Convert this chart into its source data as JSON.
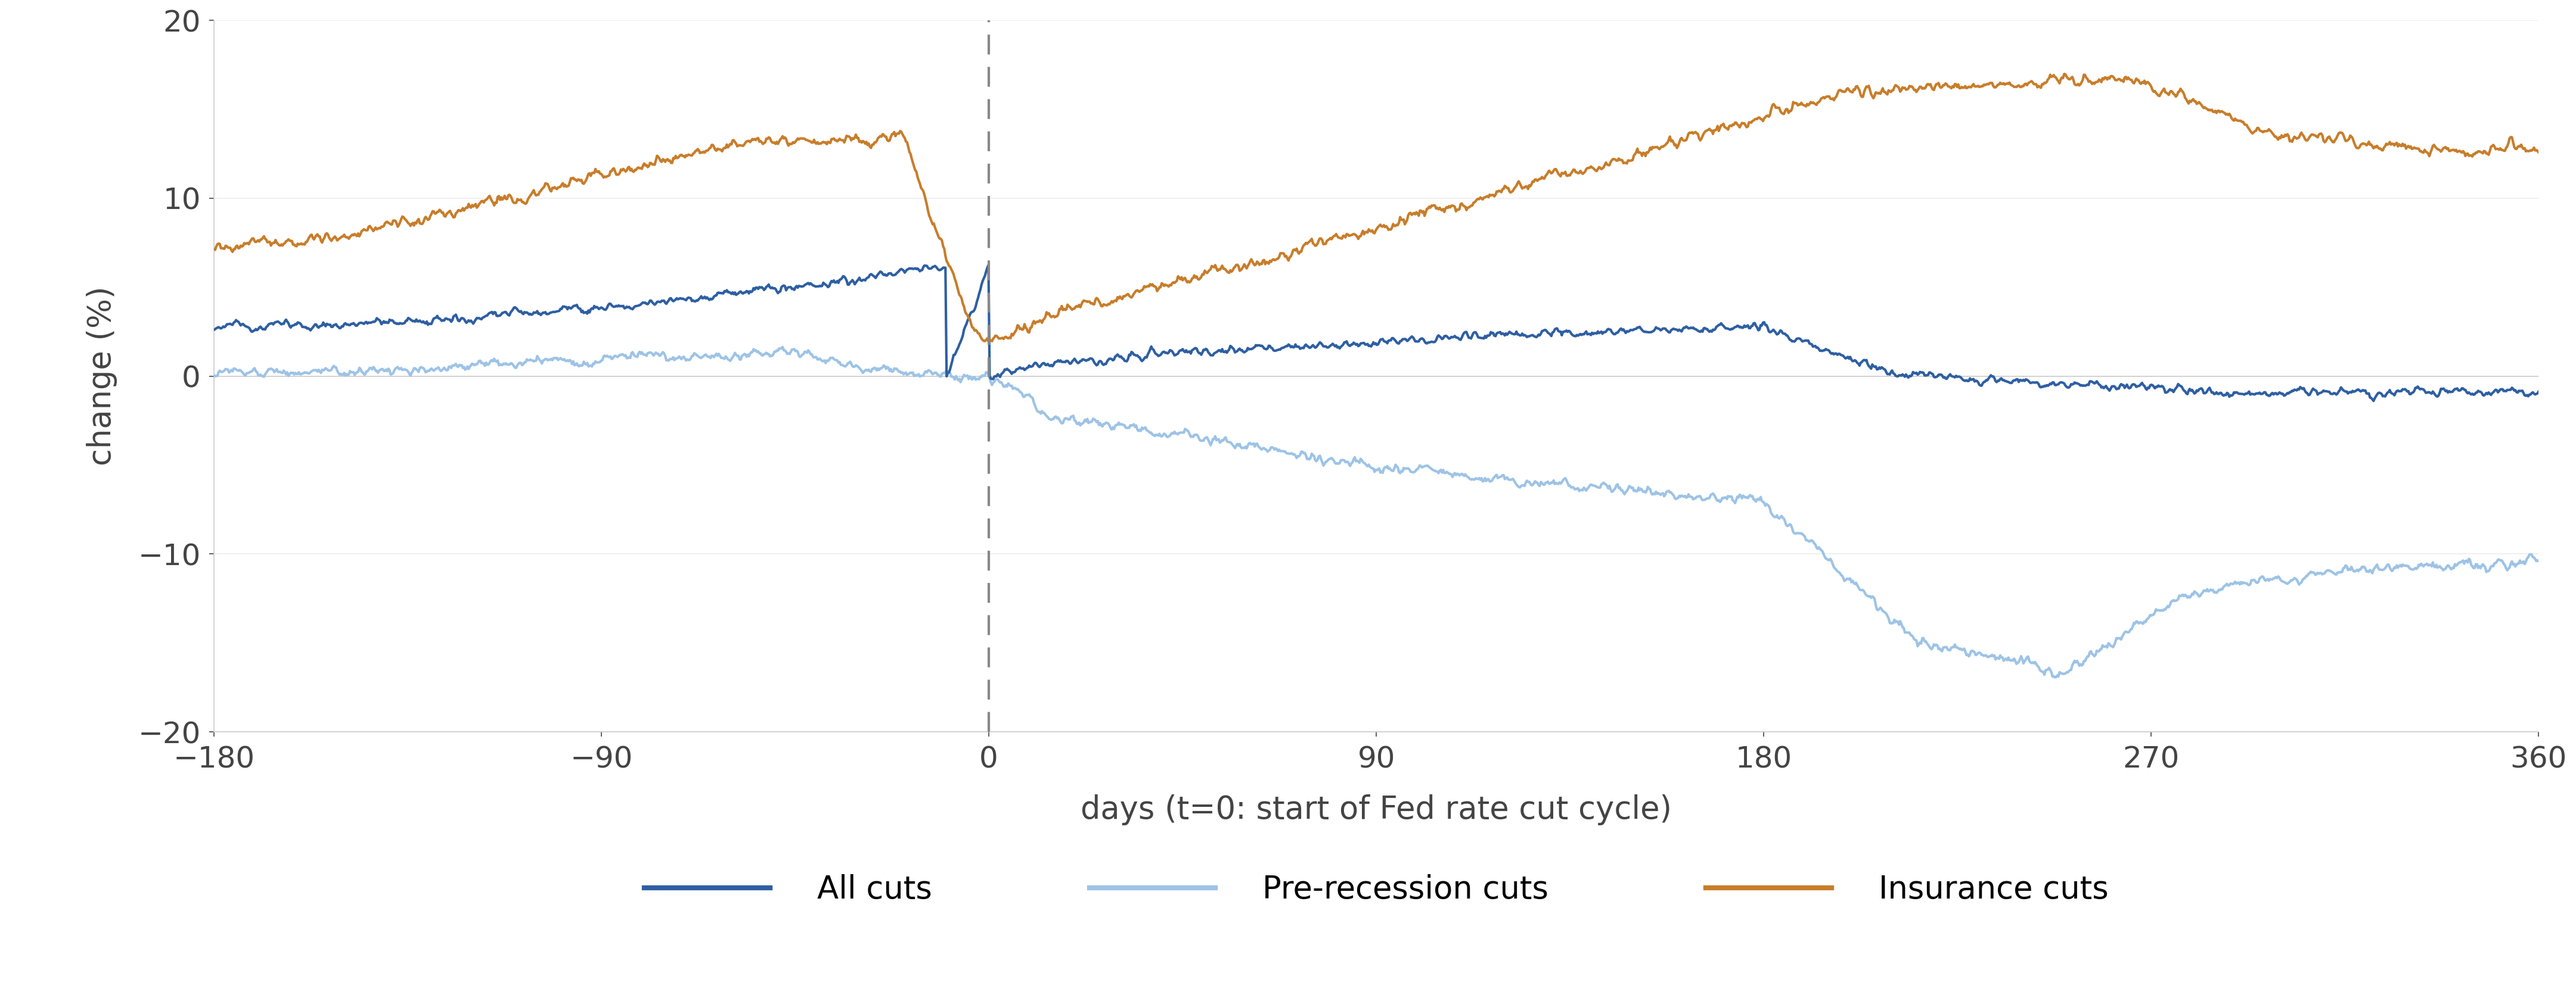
{
  "title": "",
  "ylabel": "change (%)",
  "xlabel": "days (t=0: start of Fed rate cut cycle)",
  "xlim": [
    -180,
    360
  ],
  "ylim": [
    -20,
    20
  ],
  "xticks": [
    -180,
    -90,
    0,
    90,
    180,
    270,
    360
  ],
  "yticks": [
    -20,
    -10,
    0,
    10,
    20
  ],
  "dashed_x": 0,
  "colors": {
    "all_cuts": "#2E5FA3",
    "pre_recession": "#9DC3E6",
    "insurance": "#C87D2A"
  },
  "legend": {
    "all_cuts": "All cuts",
    "pre_recession": "Pre-recession cuts",
    "insurance": "Insurance cuts"
  },
  "background": "#FFFFFF"
}
